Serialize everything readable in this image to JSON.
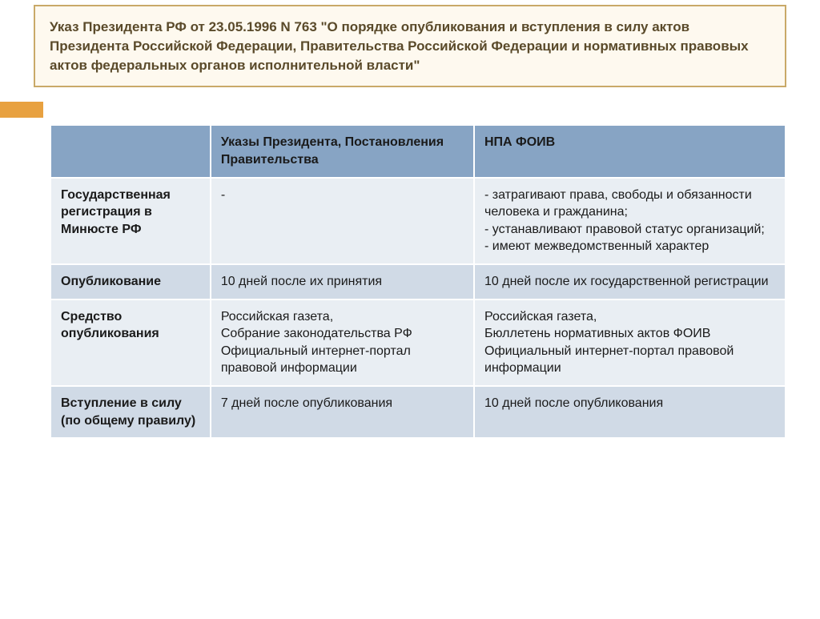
{
  "title": "Указ Президента РФ от 23.05.1996 N 763 \"О порядке опубликования и вступления в силу актов Президента Российской Федерации, Правительства Российской Федерации и нормативных правовых актов федеральных органов исполнительной власти\"",
  "colors": {
    "title_bg": "#fef9ef",
    "title_border": "#c9a968",
    "title_text": "#5a4a2a",
    "header_bg": "#87a4c4",
    "row_odd_bg": "#d0dae6",
    "row_even_bg": "#e9eef3",
    "orange_accent": "#e8a140"
  },
  "table": {
    "header": {
      "col1": "",
      "col2": "Указы Президента, Постановления Правительства",
      "col3": "НПА ФОИВ"
    },
    "rows": [
      {
        "label": "Государственная регистрация в Минюсте РФ",
        "col2": "-",
        "col3": "- затрагивают права, свободы и обязанности человека и гражданина;\n- устанавливают правовой статус организаций;\n- имеют межведомственный характер"
      },
      {
        "label": "Опубликование",
        "col2": "10 дней после их принятия",
        "col3": "10 дней после их государственной регистрации"
      },
      {
        "label": "Средство опубликования",
        "col2": "Российская газета,\nСобрание законодательства РФ\nОфициальный интернет-портал правовой информации",
        "col3": "Российская газета,\nБюллетень нормативных актов ФОИВ\nОфициальный интернет-портал правовой информации"
      },
      {
        "label": "Вступление в силу (по общему правилу)",
        "col2": "7 дней после опубликования",
        "col3": "10 дней после опубликования"
      }
    ]
  }
}
